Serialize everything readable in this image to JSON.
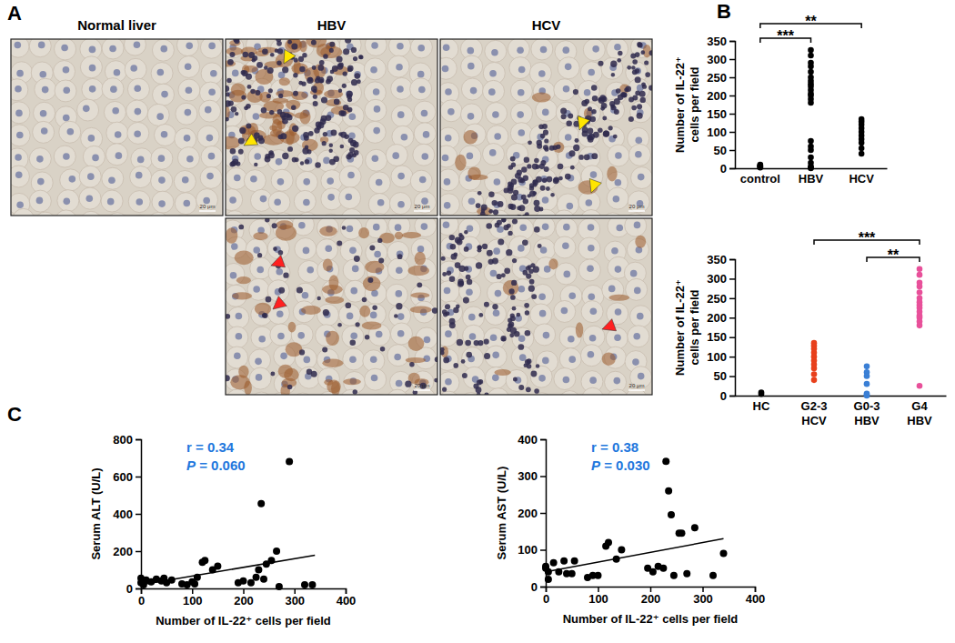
{
  "figure": {
    "panel_labels": [
      "A",
      "B",
      "C"
    ],
    "images": [
      {
        "title": "Normal liver"
      },
      {
        "title": "HBV"
      },
      {
        "title": "HCV"
      }
    ],
    "scale_bar": "20 μm"
  },
  "chart_data": [
    {
      "type": "dot",
      "ylabel": "Number of IL-22⁺\ncells per field",
      "categories": [
        "control",
        "HBV",
        "HCV"
      ],
      "colors": [
        "#000000",
        "#000000",
        "#000000"
      ],
      "values": [
        [
          2,
          4,
          5,
          6,
          8,
          10
        ],
        [
          325,
          310,
          290,
          280,
          265,
          250,
          240,
          232,
          225,
          215,
          205,
          200,
          190,
          180,
          75,
          60,
          50,
          30,
          15,
          5,
          2,
          0
        ],
        [
          135,
          128,
          120,
          110,
          100,
          90,
          80,
          70,
          55,
          40
        ]
      ],
      "ylim": [
        0,
        350
      ],
      "yticks": [
        0,
        50,
        100,
        150,
        200,
        250,
        300,
        350
      ],
      "significance": [
        {
          "from": "control",
          "to": "HBV",
          "label": "***"
        },
        {
          "from": "control",
          "to": "HCV",
          "label": "**"
        }
      ]
    },
    {
      "type": "dot",
      "ylabel": "Number of IL-22⁺\ncells per field",
      "categories": [
        "HC",
        "G2-3 HCV",
        "G0-3 HBV",
        "G4 HBV"
      ],
      "colors": [
        "#000000",
        "#e8401c",
        "#3a7fd5",
        "#e8509a"
      ],
      "values": [
        [
          4,
          8
        ],
        [
          135,
          128,
          120,
          110,
          100,
          90,
          80,
          70,
          55,
          40
        ],
        [
          75,
          60,
          50,
          30,
          5,
          2,
          0
        ],
        [
          325,
          310,
          290,
          280,
          265,
          250,
          240,
          232,
          225,
          215,
          205,
          200,
          190,
          180,
          25
        ]
      ],
      "ylim": [
        0,
        350
      ],
      "yticks": [
        0,
        50,
        100,
        150,
        200,
        250,
        300,
        350
      ],
      "significance": [
        {
          "from": "G2-3 HCV",
          "to": "G4 HBV",
          "label": "***"
        },
        {
          "from": "G0-3 HBV",
          "to": "G4 HBV",
          "label": "**"
        }
      ]
    },
    {
      "type": "scatter",
      "xlabel": "Number of IL-22⁺ cells per field",
      "ylabel": "Serum ALT (U/L)",
      "x": [
        0,
        0,
        5,
        10,
        20,
        30,
        40,
        45,
        50,
        60,
        80,
        90,
        100,
        105,
        110,
        120,
        125,
        140,
        150,
        190,
        200,
        215,
        225,
        230,
        235,
        240,
        245,
        255,
        265,
        270,
        290,
        320,
        335
      ],
      "y": [
        55,
        30,
        20,
        45,
        35,
        50,
        40,
        55,
        30,
        45,
        25,
        20,
        35,
        25,
        60,
        140,
        150,
        100,
        120,
        30,
        40,
        30,
        60,
        100,
        455,
        50,
        130,
        150,
        200,
        10,
        680,
        20,
        20
      ],
      "color": "#000000",
      "xlim": [
        0,
        400
      ],
      "xticks": [
        0,
        100,
        200,
        300,
        400
      ],
      "ylim": [
        0,
        800
      ],
      "yticks": [
        0,
        200,
        400,
        600,
        800
      ],
      "fit_line": {
        "x": [
          0,
          340
        ],
        "y": [
          20,
          178
        ]
      },
      "annotations": [
        "r = 0.34",
        "P = 0.060"
      ]
    },
    {
      "type": "scatter",
      "xlabel": "Number of IL-22⁺ cells per field",
      "ylabel": "Serum AST (U/L)",
      "x": [
        0,
        0,
        5,
        5,
        15,
        25,
        35,
        40,
        50,
        55,
        80,
        90,
        100,
        115,
        120,
        135,
        145,
        195,
        205,
        215,
        225,
        230,
        235,
        240,
        245,
        255,
        260,
        270,
        285,
        320,
        340
      ],
      "y": [
        50,
        55,
        20,
        40,
        65,
        40,
        70,
        35,
        35,
        70,
        25,
        30,
        30,
        110,
        120,
        75,
        100,
        50,
        40,
        55,
        50,
        340,
        260,
        195,
        30,
        145,
        145,
        35,
        160,
        30,
        90
      ],
      "color": "#000000",
      "xlim": [
        0,
        400
      ],
      "xticks": [
        0,
        100,
        200,
        300,
        400
      ],
      "ylim": [
        0,
        400
      ],
      "yticks": [
        0,
        100,
        200,
        300,
        400
      ],
      "fit_line": {
        "x": [
          0,
          340
        ],
        "y": [
          40,
          130
        ]
      },
      "annotations": [
        "r = 0.38",
        "P = 0.030"
      ]
    }
  ]
}
